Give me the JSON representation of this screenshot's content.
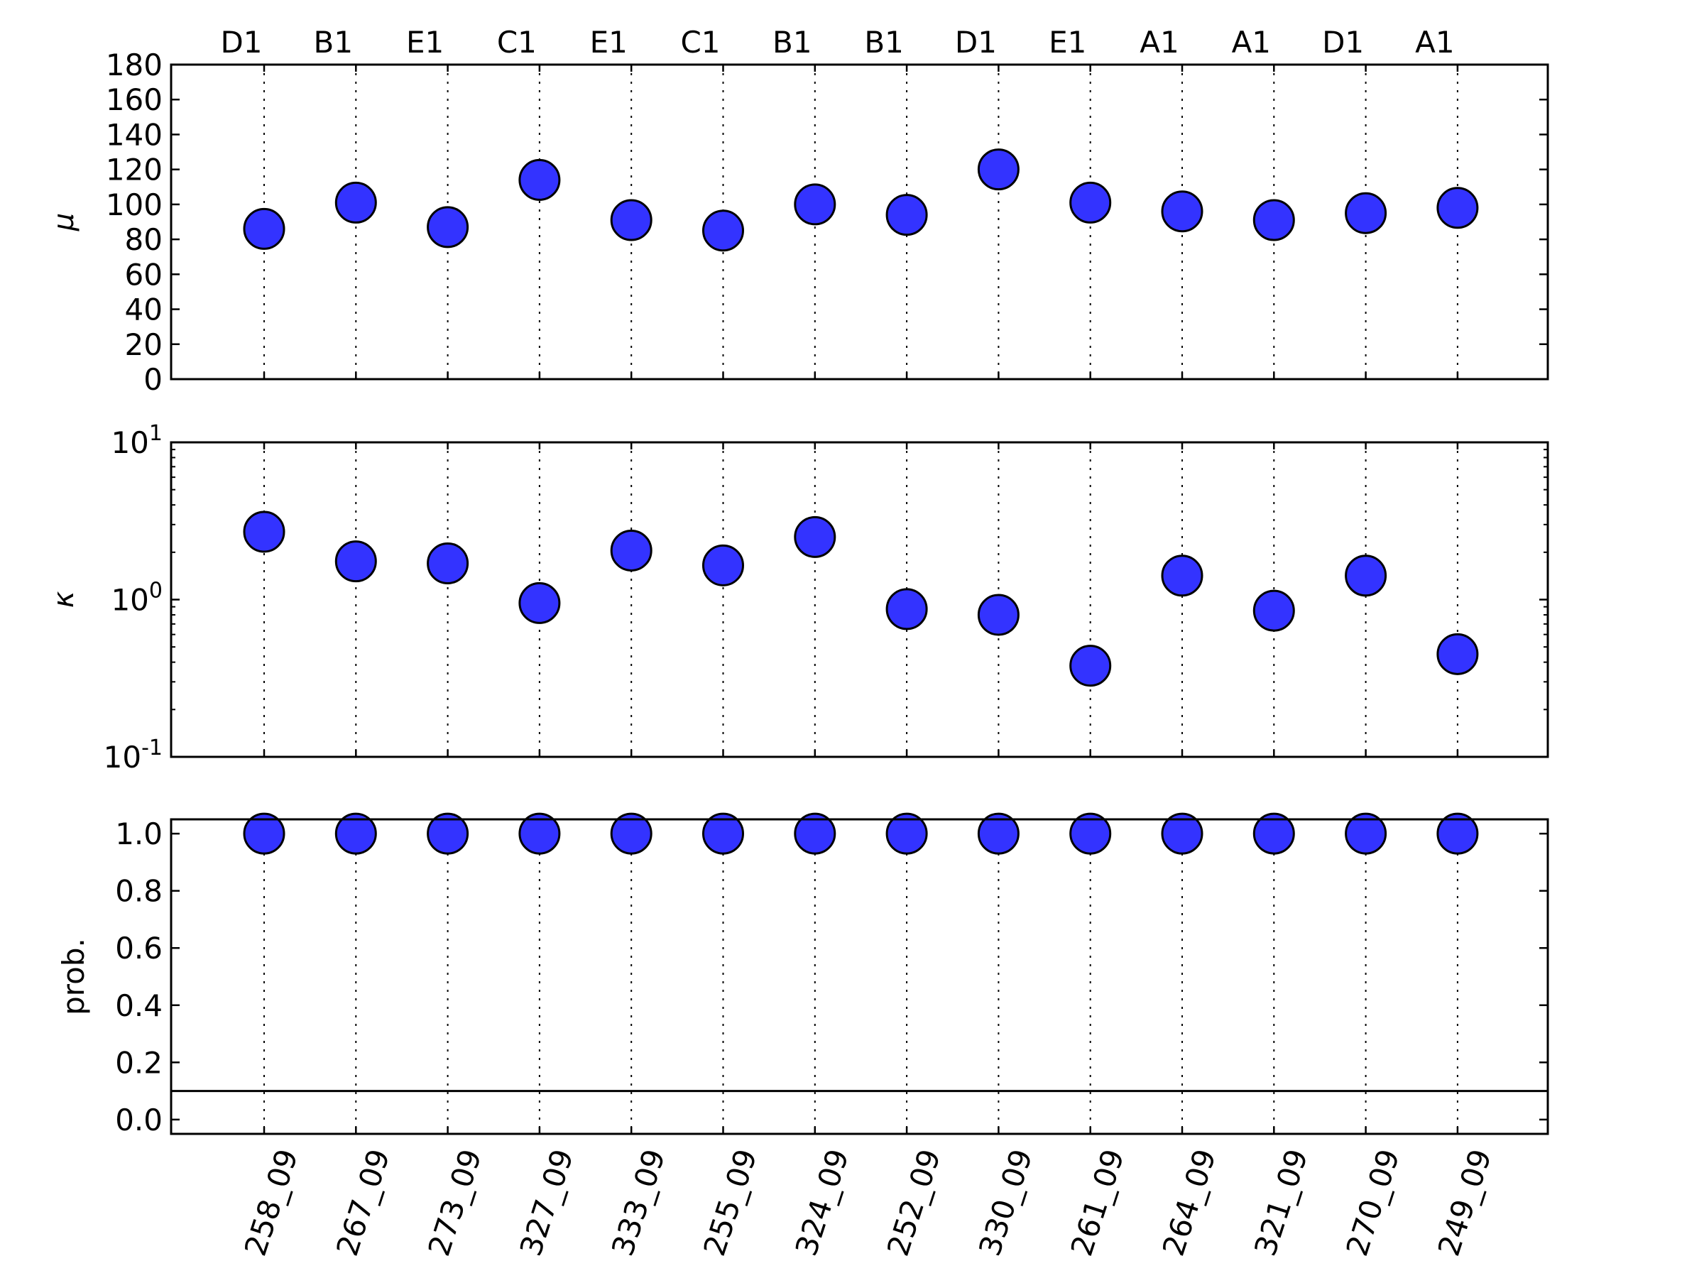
{
  "chart_data": [
    {
      "type": "scatter",
      "ylabel": "μ",
      "scale": "linear",
      "ylim": [
        0,
        180
      ],
      "yticks": [
        "0",
        "20",
        "40",
        "60",
        "80",
        "100",
        "120",
        "140",
        "160",
        "180"
      ],
      "top_labels": [
        "D1",
        "B1",
        "E1",
        "C1",
        "E1",
        "C1",
        "B1",
        "B1",
        "D1",
        "E1",
        "A1",
        "A1",
        "D1",
        "A1"
      ],
      "values": [
        86,
        101,
        87,
        114,
        91,
        85,
        100,
        94,
        120,
        101,
        96,
        91,
        95,
        98
      ]
    },
    {
      "type": "scatter",
      "ylabel": "κ",
      "scale": "log",
      "ylim": [
        0.1,
        10
      ],
      "yticks": [
        {
          "base": "10",
          "exp": "-1"
        },
        {
          "base": "10",
          "exp": "0"
        },
        {
          "base": "10",
          "exp": "1"
        }
      ],
      "values": [
        2.7,
        1.75,
        1.7,
        0.95,
        2.05,
        1.65,
        2.5,
        0.87,
        0.8,
        0.38,
        1.42,
        0.85,
        1.42,
        0.45
      ]
    },
    {
      "type": "scatter",
      "ylabel": "prob.",
      "scale": "linear",
      "ylim": [
        -0.05,
        1.05
      ],
      "yticks": [
        "0.0",
        "0.2",
        "0.4",
        "0.6",
        "0.8",
        "1.0"
      ],
      "threshold": 0.1,
      "values": [
        1.0,
        1.0,
        1.0,
        1.0,
        1.0,
        1.0,
        1.0,
        1.0,
        1.0,
        1.0,
        1.0,
        1.0,
        1.0,
        1.0
      ],
      "categories": [
        "258_09",
        "267_09",
        "273_09",
        "327_09",
        "333_09",
        "255_09",
        "324_09",
        "252_09",
        "330_09",
        "261_09",
        "264_09",
        "321_09",
        "270_09",
        "249_09"
      ]
    }
  ],
  "colors": {
    "marker": "#3333ff",
    "marker_edge": "#000000"
  },
  "grid": "vertical dotted lines at each category"
}
